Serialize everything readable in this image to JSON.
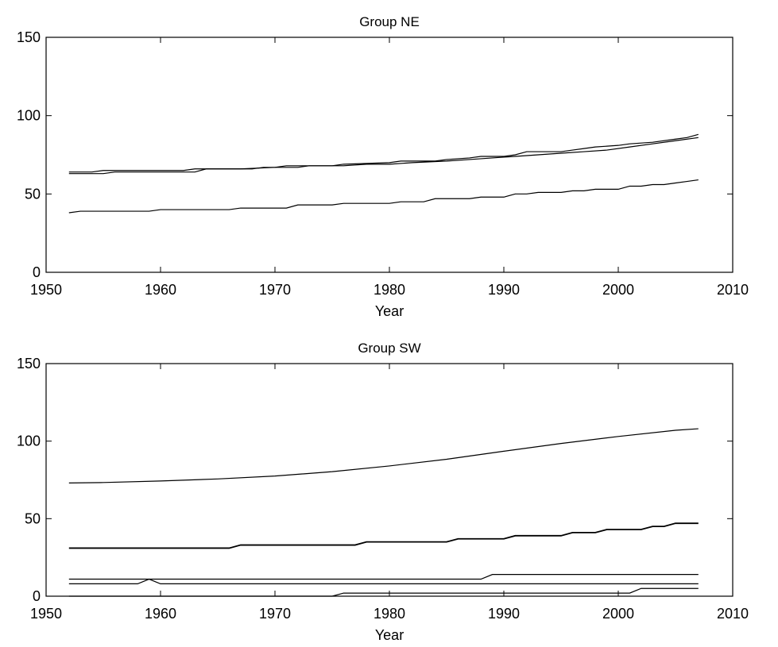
{
  "chart_data": [
    {
      "type": "line",
      "title": "Group NE",
      "xlabel": "Year",
      "ylabel": "",
      "xlim": [
        1950,
        2010
      ],
      "ylim": [
        0,
        150
      ],
      "xticks": [
        1950,
        1960,
        1970,
        1980,
        1990,
        2000,
        2010
      ],
      "yticks": [
        0,
        50,
        100,
        150
      ],
      "grid": false,
      "series": [
        {
          "values": [
            [
              1952,
              63
            ],
            [
              1955,
              63
            ],
            [
              1956,
              64
            ],
            [
              1960,
              64
            ],
            [
              1963,
              64
            ],
            [
              1964,
              66
            ],
            [
              1967,
              66
            ],
            [
              1970,
              67
            ],
            [
              1971,
              68
            ],
            [
              1975,
              68
            ],
            [
              1976,
              69
            ],
            [
              1980,
              70
            ],
            [
              1981,
              71
            ],
            [
              1984,
              71
            ],
            [
              1985,
              72
            ],
            [
              1987,
              73
            ],
            [
              1988,
              74
            ],
            [
              1990,
              74
            ],
            [
              1991,
              75
            ],
            [
              1992,
              77
            ],
            [
              1995,
              77
            ],
            [
              1996,
              78
            ],
            [
              1997,
              79
            ],
            [
              1998,
              80
            ],
            [
              2000,
              81
            ],
            [
              2001,
              82
            ],
            [
              2003,
              83
            ],
            [
              2005,
              85
            ],
            [
              2006,
              86
            ],
            [
              2007,
              88
            ]
          ]
        },
        {
          "values": [
            [
              1952,
              64
            ],
            [
              1954,
              64
            ],
            [
              1955,
              65
            ],
            [
              1962,
              65
            ],
            [
              1963,
              66
            ],
            [
              1964,
              66
            ],
            [
              1968,
              66
            ],
            [
              1969,
              67
            ],
            [
              1972,
              67
            ],
            [
              1973,
              68
            ],
            [
              1976,
              68
            ],
            [
              1978,
              69
            ],
            [
              1980,
              69
            ],
            [
              1982,
              70
            ],
            [
              1985,
              71
            ],
            [
              1987,
              72
            ],
            [
              1989,
              73
            ],
            [
              1991,
              74
            ],
            [
              1993,
              75
            ],
            [
              1995,
              76
            ],
            [
              1997,
              77
            ],
            [
              1999,
              78
            ],
            [
              2001,
              80
            ],
            [
              2003,
              82
            ],
            [
              2005,
              84
            ],
            [
              2007,
              86
            ]
          ]
        },
        {
          "values": [
            [
              1952,
              38
            ],
            [
              1953,
              39
            ],
            [
              1959,
              39
            ],
            [
              1960,
              40
            ],
            [
              1966,
              40
            ],
            [
              1967,
              41
            ],
            [
              1971,
              41
            ],
            [
              1972,
              43
            ],
            [
              1975,
              43
            ],
            [
              1976,
              44
            ],
            [
              1980,
              44
            ],
            [
              1981,
              45
            ],
            [
              1983,
              45
            ],
            [
              1984,
              47
            ],
            [
              1987,
              47
            ],
            [
              1988,
              48
            ],
            [
              1990,
              48
            ],
            [
              1991,
              50
            ],
            [
              1992,
              50
            ],
            [
              1993,
              51
            ],
            [
              1995,
              51
            ],
            [
              1996,
              52
            ],
            [
              1997,
              52
            ],
            [
              1998,
              53
            ],
            [
              2000,
              53
            ],
            [
              2001,
              55
            ],
            [
              2002,
              55
            ],
            [
              2003,
              56
            ],
            [
              2004,
              56
            ],
            [
              2005,
              57
            ],
            [
              2006,
              58
            ],
            [
              2007,
              59
            ]
          ]
        }
      ]
    },
    {
      "type": "line",
      "title": "Group SW",
      "xlabel": "Year",
      "ylabel": "",
      "xlim": [
        1950,
        2010
      ],
      "ylim": [
        0,
        150
      ],
      "xticks": [
        1950,
        1960,
        1970,
        1980,
        1990,
        2000,
        2010
      ],
      "yticks": [
        0,
        50,
        100,
        150
      ],
      "grid": false,
      "series": [
        {
          "values": [
            [
              1952,
              73
            ],
            [
              1955,
              73.3
            ],
            [
              1960,
              74.3
            ],
            [
              1965,
              75.6
            ],
            [
              1970,
              77.5
            ],
            [
              1975,
              80.3
            ],
            [
              1980,
              84
            ],
            [
              1985,
              88.3
            ],
            [
              1990,
              93.5
            ],
            [
              1995,
              98.5
            ],
            [
              2000,
              103
            ],
            [
              2005,
              107
            ],
            [
              2007,
              108
            ]
          ]
        },
        {
          "values": [
            [
              1952,
              31
            ],
            [
              1966,
              31
            ],
            [
              1967,
              33
            ],
            [
              1977,
              33
            ],
            [
              1978,
              35
            ],
            [
              1985,
              35
            ],
            [
              1986,
              37
            ],
            [
              1990,
              37
            ],
            [
              1991,
              39
            ],
            [
              1995,
              39
            ],
            [
              1996,
              41
            ],
            [
              1998,
              41
            ],
            [
              1999,
              43
            ],
            [
              2002,
              43
            ],
            [
              2003,
              45
            ],
            [
              2004,
              45
            ],
            [
              2005,
              47
            ],
            [
              2007,
              47
            ]
          ]
        },
        {
          "values": [
            [
              1952,
              11
            ],
            [
              1988,
              11
            ],
            [
              1989,
              14
            ],
            [
              2007,
              14
            ]
          ]
        },
        {
          "values": [
            [
              1952,
              8
            ],
            [
              1958,
              8
            ],
            [
              1959,
              11
            ],
            [
              1960,
              8
            ],
            [
              2007,
              8
            ]
          ]
        },
        {
          "values": [
            [
              1952,
              0
            ],
            [
              1975,
              0
            ],
            [
              1976,
              2
            ],
            [
              2001,
              2
            ],
            [
              2002,
              5
            ],
            [
              2007,
              5
            ]
          ]
        }
      ]
    }
  ]
}
